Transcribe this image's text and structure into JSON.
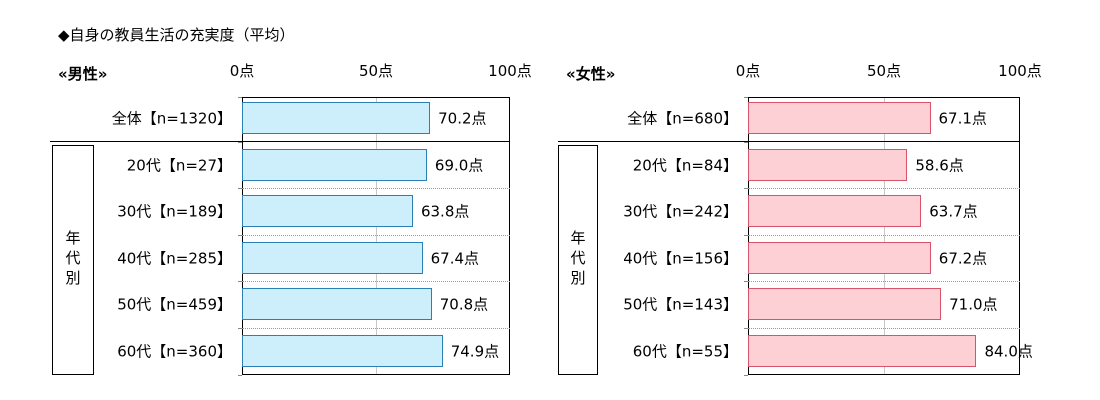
{
  "title": "◆自身の教員生活の充実度（平均）",
  "chart_data": [
    {
      "type": "bar",
      "orientation": "horizontal",
      "panel_label": "«男性»",
      "group_label": "年代別",
      "xlim": [
        0,
        100
      ],
      "ticks": [
        0,
        50,
        100
      ],
      "tick_labels": [
        "0点",
        "50点",
        "100点"
      ],
      "categories": [
        "全体【n=1320】",
        "20代【n=27】",
        "30代【n=189】",
        "40代【n=285】",
        "50代【n=459】",
        "60代【n=360】"
      ],
      "values": [
        70.2,
        69.0,
        63.8,
        67.4,
        70.8,
        74.9
      ],
      "value_labels": [
        "70.2点",
        "69.0点",
        "63.8点",
        "67.4点",
        "70.8点",
        "74.9点"
      ],
      "bar_fill": "#cdeefb",
      "bar_stroke": "#2a7fb8"
    },
    {
      "type": "bar",
      "orientation": "horizontal",
      "panel_label": "«女性»",
      "group_label": "年代別",
      "xlim": [
        0,
        100
      ],
      "ticks": [
        0,
        50,
        100
      ],
      "tick_labels": [
        "0点",
        "50点",
        "100点"
      ],
      "categories": [
        "全体【n=680】",
        "20代【n=84】",
        "30代【n=242】",
        "40代【n=156】",
        "50代【n=143】",
        "60代【n=55】"
      ],
      "values": [
        67.1,
        58.6,
        63.7,
        67.2,
        71.0,
        84.0
      ],
      "value_labels": [
        "67.1点",
        "58.6点",
        "63.7点",
        "67.2点",
        "71.0点",
        "84.0点"
      ],
      "bar_fill": "#fdd0d6",
      "bar_stroke": "#d9546a"
    }
  ]
}
